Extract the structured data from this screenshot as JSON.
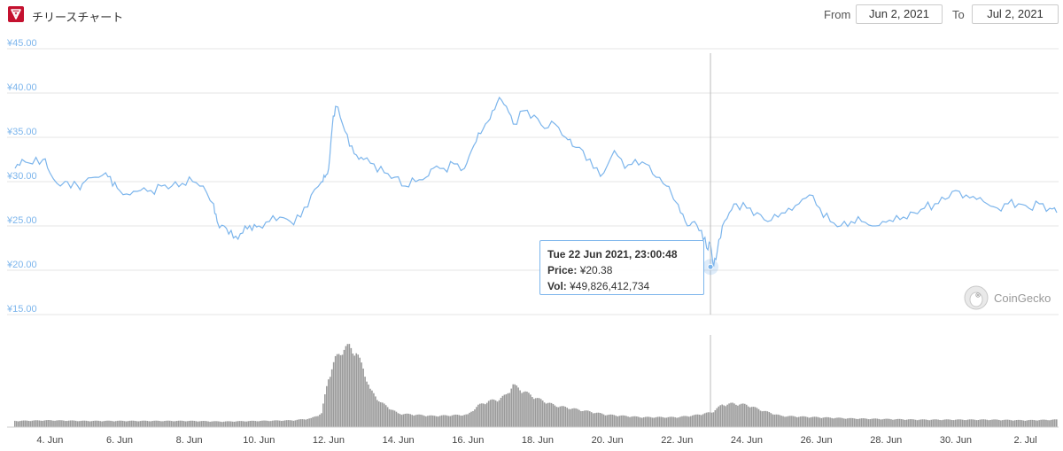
{
  "header": {
    "title": "チリースチャート",
    "from_label": "From",
    "from_value": "Jun 2, 2021",
    "to_label": "To",
    "to_value": "Jul 2, 2021"
  },
  "credit": {
    "text": "CoinGecko",
    "icon": "gecko-icon"
  },
  "tooltip": {
    "date": "Tue 22 Jun 2021, 23:00:48",
    "price_label": "Price:",
    "price_value": "¥20.38",
    "vol_label": "Vol:",
    "vol_value": "¥49,826,412,734"
  },
  "colors": {
    "price_line": "#7cb5ec",
    "volume_bar": "#888888",
    "grid": "#e6e6e6",
    "axis_label": "#7cb5ec",
    "brand": "#c4112f"
  },
  "chart_data": {
    "type": "line",
    "x_start_date": "2021-06-03",
    "x_end_date": "2021-07-02",
    "xticks": [
      "4. Jun",
      "6. Jun",
      "8. Jun",
      "10. Jun",
      "12. Jun",
      "14. Jun",
      "16. Jun",
      "18. Jun",
      "20. Jun",
      "22. Jun",
      "24. Jun",
      "26. Jun",
      "28. Jun",
      "30. Jun",
      "2. Jul"
    ],
    "ylim": [
      15,
      45
    ],
    "yticks": [
      "¥15.00",
      "¥20.00",
      "¥25.00",
      "¥30.00",
      "¥35.00",
      "¥40.00",
      "¥45.00"
    ],
    "grid": true,
    "series": [
      {
        "x": [
          3.0,
          3.2,
          3.5,
          3.8,
          4.0,
          4.3,
          4.5,
          4.8,
          5.0,
          5.3,
          5.6,
          5.8,
          6.0,
          6.3,
          6.6,
          6.9,
          7.2,
          7.5,
          7.8,
          8.1,
          8.4,
          8.7,
          8.8,
          9.0,
          9.2,
          9.4,
          9.6,
          9.8,
          10.0,
          10.3,
          10.6,
          10.9,
          11.2,
          11.5,
          11.8,
          11.9,
          12.0,
          12.1,
          12.2,
          12.4,
          12.6,
          12.8,
          13.0,
          13.3,
          13.6,
          13.9,
          14.2,
          14.5,
          14.8,
          15.0,
          15.3,
          15.6,
          15.9,
          16.1,
          16.3,
          16.5,
          16.7,
          16.9,
          17.1,
          17.3,
          17.6,
          17.9,
          18.2,
          18.5,
          18.8,
          19.0,
          19.3,
          19.6,
          19.9,
          20.2,
          20.5,
          20.8,
          21.1,
          21.4,
          21.7,
          21.9,
          22.1,
          22.3,
          22.5,
          22.7,
          22.85,
          22.96,
          23.05,
          23.15,
          23.3,
          23.5,
          23.7,
          24.0,
          24.3,
          24.6,
          24.9,
          25.2,
          25.5,
          25.8,
          26.1,
          26.4,
          26.7,
          27.0,
          27.3,
          27.6,
          27.9,
          28.2,
          28.5,
          28.8,
          29.1,
          29.4,
          29.7,
          30.0,
          30.3,
          30.6,
          30.9,
          31.2,
          31.5,
          31.8,
          32.1,
          32.4,
          32.7,
          32.9
        ],
        "y": [
          31.5,
          32.5,
          32.0,
          32.5,
          31.0,
          29.5,
          30.0,
          29.5,
          30.0,
          30.5,
          31.0,
          29.5,
          29.0,
          28.5,
          29.0,
          29.0,
          29.5,
          29.5,
          29.8,
          30.0,
          29.5,
          27.5,
          25.5,
          25.0,
          24.5,
          23.5,
          25.0,
          24.5,
          25.0,
          25.5,
          26.0,
          25.5,
          26.0,
          28.5,
          30.0,
          30.5,
          31.5,
          36.0,
          38.5,
          36.5,
          34.0,
          33.0,
          32.5,
          32.0,
          31.0,
          30.5,
          29.5,
          30.0,
          30.5,
          31.5,
          31.5,
          32.0,
          31.5,
          33.5,
          35.5,
          36.5,
          38.0,
          39.5,
          38.5,
          36.5,
          38.0,
          37.5,
          36.0,
          36.5,
          35.0,
          34.0,
          33.5,
          31.5,
          31.0,
          33.5,
          31.5,
          32.5,
          32.0,
          30.5,
          29.5,
          28.0,
          26.5,
          25.0,
          25.5,
          24.5,
          22.5,
          23.0,
          20.4,
          22.0,
          25.0,
          26.5,
          27.5,
          27.0,
          26.5,
          25.5,
          26.0,
          27.0,
          27.5,
          28.5,
          27.0,
          25.5,
          25.0,
          25.5,
          25.5,
          25.0,
          25.5,
          25.5,
          26.0,
          26.5,
          27.0,
          27.5,
          28.0,
          29.0,
          28.5,
          28.0,
          27.5,
          27.0,
          27.5,
          27.5,
          27.0,
          27.5,
          27.0,
          26.5
        ]
      },
      {
        "x": [
          3.0,
          4.0,
          5.0,
          6.0,
          7.0,
          8.0,
          9.0,
          10.0,
          11.0,
          11.5,
          11.8,
          12.0,
          12.2,
          12.4,
          12.6,
          12.8,
          13.0,
          13.2,
          13.5,
          14.0,
          15.0,
          16.0,
          16.3,
          16.6,
          16.9,
          17.1,
          17.3,
          17.6,
          18.0,
          18.5,
          19.0,
          20.0,
          21.0,
          22.0,
          22.5,
          23.0,
          23.3,
          23.6,
          24.0,
          24.5,
          25.0,
          26.0,
          27.0,
          28.0,
          29.0,
          30.0,
          31.0,
          32.0,
          32.9
        ],
        "y": [
          1.0,
          1.1,
          1.0,
          1.0,
          1.0,
          1.0,
          0.9,
          1.0,
          1.1,
          1.4,
          2.2,
          8.0,
          11.0,
          12.5,
          13.0,
          12.0,
          9.5,
          6.0,
          4.0,
          2.2,
          1.8,
          2.0,
          3.5,
          4.2,
          4.5,
          5.2,
          6.8,
          5.8,
          4.6,
          3.5,
          3.0,
          2.0,
          1.6,
          1.6,
          1.9,
          2.4,
          3.6,
          3.8,
          3.6,
          2.6,
          1.8,
          1.6,
          1.4,
          1.3,
          1.2,
          1.2,
          1.2,
          1.1,
          1.2
        ]
      }
    ],
    "highlight": {
      "x": 22.96,
      "y": 20.38
    }
  }
}
